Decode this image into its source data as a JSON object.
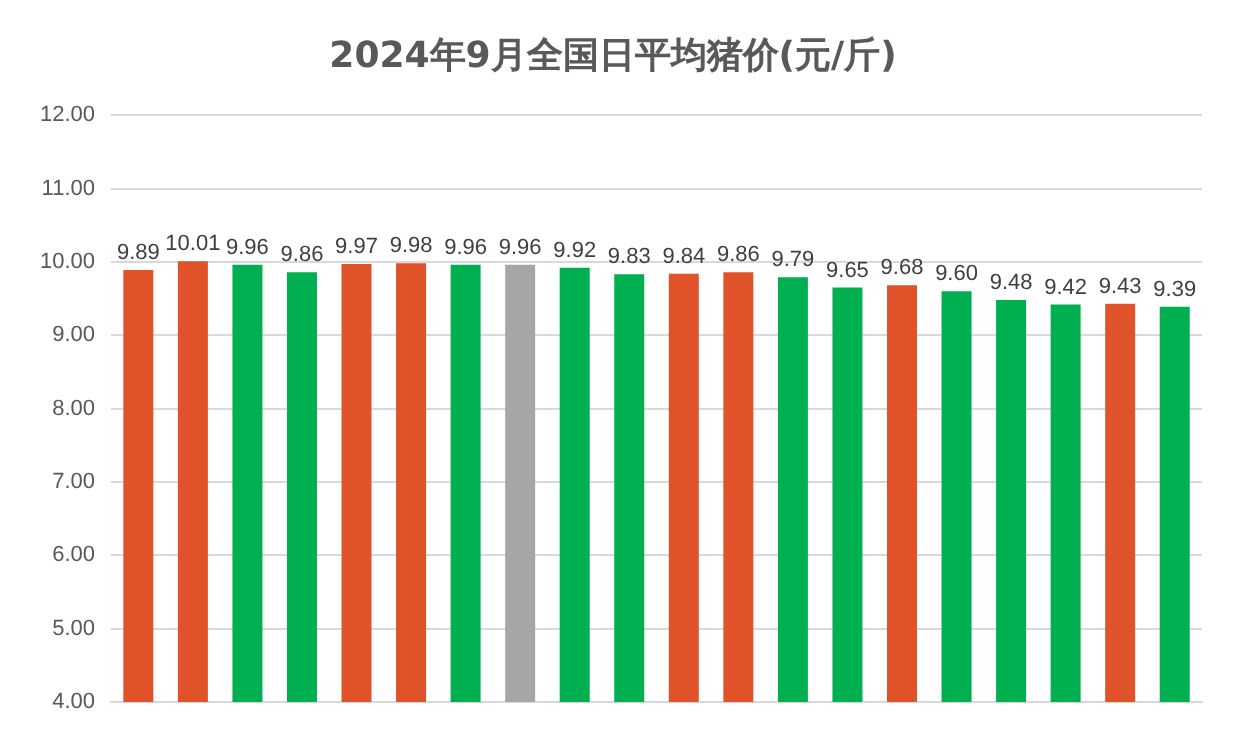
{
  "chart_data": {
    "type": "bar",
    "title": "2024年9月全国日平均猪价(元/斤)",
    "categories": [
      null,
      null,
      null,
      null,
      null,
      null,
      null,
      null,
      null,
      null,
      null,
      null,
      null,
      null,
      null,
      null,
      null,
      null,
      null,
      null
    ],
    "values": [
      9.89,
      10.01,
      9.96,
      9.86,
      9.97,
      9.98,
      9.96,
      9.96,
      9.92,
      9.83,
      9.84,
      9.86,
      9.79,
      9.65,
      9.68,
      9.6,
      9.48,
      9.42,
      9.43,
      9.39
    ],
    "value_labels": [
      "9.89",
      "10.01",
      "9.96",
      "9.86",
      "9.97",
      "9.98",
      "9.96",
      "9.96",
      "9.92",
      "9.83",
      "9.84",
      "9.86",
      "9.79",
      "9.65",
      "9.68",
      "9.60",
      "9.48",
      "9.42",
      "9.43",
      "9.39"
    ],
    "colors": [
      "#e0532a",
      "#e0532a",
      "#00b050",
      "#00b050",
      "#e0532a",
      "#e0532a",
      "#00b050",
      "#a6a6a6",
      "#00b050",
      "#00b050",
      "#e0532a",
      "#e0532a",
      "#00b050",
      "#00b050",
      "#e0532a",
      "#00b050",
      "#00b050",
      "#00b050",
      "#e0532a",
      "#00b050"
    ],
    "ylim": [
      4,
      12
    ],
    "yticks": [
      {
        "value": 4,
        "label": "4.00"
      },
      {
        "value": 5,
        "label": "5.00"
      },
      {
        "value": 6,
        "label": "6.00"
      },
      {
        "value": 7,
        "label": "7.00"
      },
      {
        "value": 8,
        "label": "8.00"
      },
      {
        "value": 9,
        "label": "9.00"
      },
      {
        "value": 10,
        "label": "10.00"
      },
      {
        "value": 11,
        "label": "11.00"
      },
      {
        "value": 12,
        "label": "12.00"
      }
    ],
    "grid": "y",
    "legend": false
  }
}
